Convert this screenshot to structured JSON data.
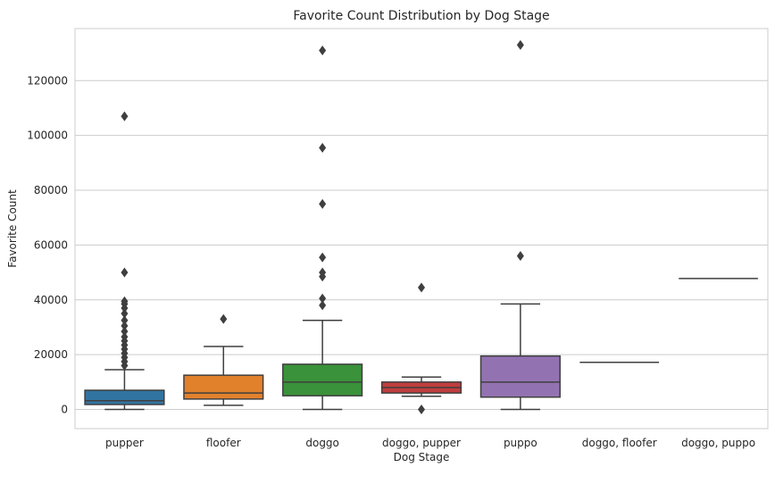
{
  "chart_data": {
    "type": "box",
    "title": "Favorite Count Distribution by Dog Stage",
    "xlabel": "Dog Stage",
    "ylabel": "Favorite Count",
    "ylim": [
      -7000,
      139000
    ],
    "yticks": [
      0,
      20000,
      40000,
      60000,
      80000,
      100000,
      120000
    ],
    "ytick_labels": [
      "0",
      "20000",
      "40000",
      "60000",
      "80000",
      "100000",
      "120000"
    ],
    "grid": "horizontal",
    "categories": [
      "pupper",
      "floofer",
      "doggo",
      "doggo, pupper",
      "puppo",
      "doggo, floofer",
      "doggo, puppo"
    ],
    "boxes": [
      {
        "category": "pupper",
        "color": "#3274a1",
        "whislo": 0,
        "q1": 1800,
        "med": 3200,
        "q3": 7000,
        "whishi": 14500,
        "fliers": [
          16000,
          17500,
          19000,
          20500,
          22000,
          23500,
          25000,
          26500,
          28500,
          30500,
          32500,
          35000,
          37000,
          38500,
          39500,
          50000,
          107000
        ]
      },
      {
        "category": "floofer",
        "color": "#e1812c",
        "whislo": 1500,
        "q1": 3800,
        "med": 6000,
        "q3": 12500,
        "whishi": 23000,
        "fliers": [
          33000
        ]
      },
      {
        "category": "doggo",
        "color": "#3a923a",
        "whislo": 0,
        "q1": 5000,
        "med": 10000,
        "q3": 16500,
        "whishi": 32500,
        "fliers": [
          38000,
          40500,
          48500,
          50000,
          55500,
          75000,
          95500,
          131000
        ]
      },
      {
        "category": "doggo, pupper",
        "color": "#c03d3e",
        "whislo": 4800,
        "q1": 6000,
        "med": 8000,
        "q3": 10000,
        "whishi": 11800,
        "fliers": [
          0,
          44500
        ]
      },
      {
        "category": "puppo",
        "color": "#9372b2",
        "whislo": 0,
        "q1": 4500,
        "med": 10000,
        "q3": 19500,
        "whishi": 38500,
        "fliers": [
          56000,
          133000
        ]
      },
      {
        "category": "doggo, floofer",
        "color": "#845b53",
        "whislo": 17200,
        "q1": 17200,
        "med": 17200,
        "q3": 17200,
        "whishi": 17200,
        "fliers": []
      },
      {
        "category": "doggo, puppo",
        "color": "#d684bd",
        "whislo": 47800,
        "q1": 47800,
        "med": 47800,
        "q3": 47800,
        "whishi": 47800,
        "fliers": []
      }
    ]
  }
}
